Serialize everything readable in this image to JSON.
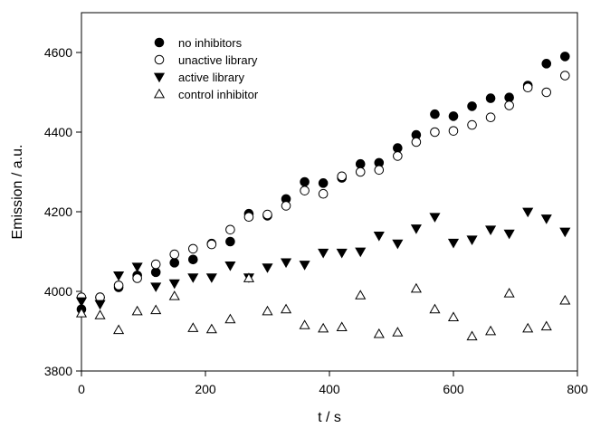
{
  "chart_data": {
    "type": "scatter",
    "title": "",
    "xlabel": "t / s",
    "ylabel": "Emission / a.u.",
    "xlim": [
      0,
      800
    ],
    "ylim": [
      3800,
      4700
    ],
    "xticks": [
      0,
      200,
      400,
      600,
      800
    ],
    "yticks": [
      3800,
      4000,
      4200,
      4400,
      4600
    ],
    "grid": false,
    "legend_position": "top-left",
    "series": [
      {
        "name": "no inhibitors",
        "marker": "filled-circle",
        "x": [
          0,
          30,
          60,
          90,
          120,
          150,
          180,
          210,
          240,
          270,
          300,
          330,
          360,
          390,
          420,
          450,
          480,
          510,
          540,
          570,
          600,
          630,
          660,
          690,
          720,
          750,
          780
        ],
        "y": [
          3955,
          3985,
          4010,
          4040,
          4048,
          4072,
          4080,
          4120,
          4125,
          4195,
          4190,
          4232,
          4275,
          4272,
          4285,
          4320,
          4323,
          4360,
          4393,
          4445,
          4440,
          4465,
          4485,
          4487,
          4517,
          4572,
          4590
        ]
      },
      {
        "name": "unactive library",
        "marker": "open-circle",
        "x": [
          0,
          30,
          60,
          90,
          120,
          150,
          180,
          210,
          240,
          270,
          300,
          330,
          360,
          390,
          420,
          450,
          480,
          510,
          540,
          570,
          600,
          630,
          660,
          690,
          720,
          750,
          780
        ],
        "y": [
          3985,
          3985,
          4015,
          4033,
          4068,
          4093,
          4107,
          4118,
          4155,
          4187,
          4193,
          4215,
          4253,
          4245,
          4289,
          4300,
          4305,
          4340,
          4375,
          4400,
          4403,
          4418,
          4437,
          4467,
          4512,
          4500,
          4542
        ]
      },
      {
        "name": "active library",
        "marker": "filled-triangle-down",
        "x": [
          0,
          30,
          60,
          90,
          120,
          150,
          180,
          210,
          240,
          270,
          300,
          330,
          360,
          390,
          420,
          450,
          480,
          510,
          540,
          570,
          600,
          630,
          660,
          690,
          720,
          750,
          780
        ],
        "y": [
          3975,
          3968,
          4040,
          4062,
          4012,
          4020,
          4035,
          4035,
          4065,
          4035,
          4060,
          4073,
          4067,
          4097,
          4097,
          4100,
          4140,
          4120,
          4158,
          4187,
          4122,
          4130,
          4155,
          4145,
          4200,
          4183,
          4150
        ]
      },
      {
        "name": "control inhibitor",
        "marker": "open-triangle-up",
        "x": [
          0,
          30,
          60,
          90,
          120,
          150,
          180,
          210,
          240,
          270,
          300,
          330,
          360,
          390,
          420,
          450,
          480,
          510,
          540,
          570,
          600,
          630,
          660,
          690,
          720,
          750,
          780
        ],
        "y": [
          3945,
          3940,
          3903,
          3950,
          3953,
          3988,
          3908,
          3905,
          3930,
          4033,
          3950,
          3955,
          3915,
          3907,
          3910,
          3990,
          3893,
          3897,
          4007,
          3955,
          3935,
          3887,
          3900,
          3995,
          3907,
          3912,
          3977
        ]
      }
    ]
  }
}
